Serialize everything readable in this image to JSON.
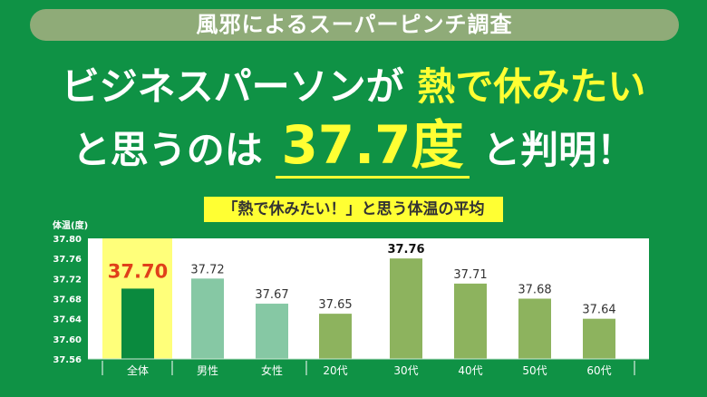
{
  "header": {
    "survey_label": "風邪によるスーパーピンチ調査",
    "line1_a": "ビジネスパーソンが",
    "line1_b": "熱で休みたい",
    "line2_a": "と思うのは",
    "line2_b": "37.7度",
    "line2_c": "と判明！"
  },
  "colors": {
    "background": "#0f9245",
    "highlight": "#ffff33",
    "overall_bar": "#0a8a3e",
    "gender_bar": "#86c8a4",
    "age_bar": "#8db35e",
    "overall_label": "#e0401a"
  },
  "chart_data": {
    "type": "bar",
    "title": "「熱で休みたい！」と思う体温の平均",
    "ylabel": "体温(度)",
    "ylim": [
      37.56,
      37.8
    ],
    "yticks": [
      "37.80",
      "37.76",
      "37.72",
      "37.68",
      "37.64",
      "37.60",
      "37.56"
    ],
    "grid": false,
    "categories": [
      "全体",
      "男性",
      "女性",
      "20代",
      "30代",
      "40代",
      "50代",
      "60代"
    ],
    "values": [
      37.7,
      37.72,
      37.67,
      37.65,
      37.76,
      37.71,
      37.68,
      37.64
    ],
    "labels": [
      "37.70",
      "37.72",
      "37.67",
      "37.65",
      "37.76",
      "37.71",
      "37.68",
      "37.64"
    ],
    "highlighted": "全体"
  }
}
